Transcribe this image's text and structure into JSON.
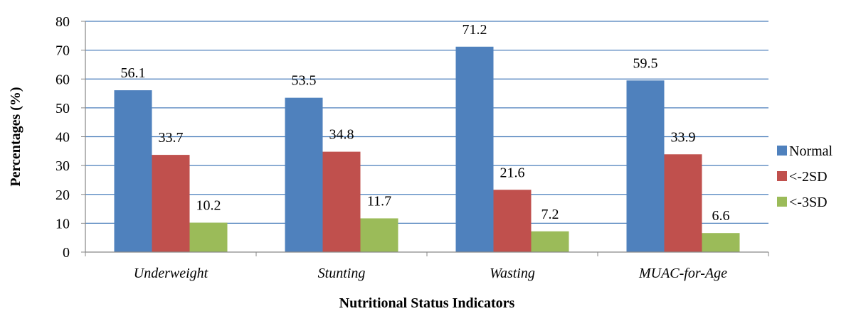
{
  "chart_data": {
    "type": "bar",
    "title": "",
    "xlabel": "Nutritional Status Indicators",
    "ylabel": "Percentages (%)",
    "ylim": [
      0,
      80
    ],
    "yticks": [
      0,
      10,
      20,
      30,
      40,
      50,
      60,
      70,
      80
    ],
    "grid": true,
    "legend_position": "right",
    "categories": [
      "Underweight",
      "Stunting",
      "Wasting",
      "MUAC-for-Age"
    ],
    "series": [
      {
        "name": "Normal",
        "color": "#4F81BD",
        "values": [
          56.1,
          53.5,
          71.2,
          59.5
        ]
      },
      {
        "name": "<-2SD",
        "color": "#C0504D",
        "values": [
          33.7,
          34.8,
          21.6,
          33.9
        ]
      },
      {
        "name": "<-3SD",
        "color": "#9BBB59",
        "values": [
          10.2,
          11.7,
          7.2,
          6.6
        ]
      }
    ]
  }
}
